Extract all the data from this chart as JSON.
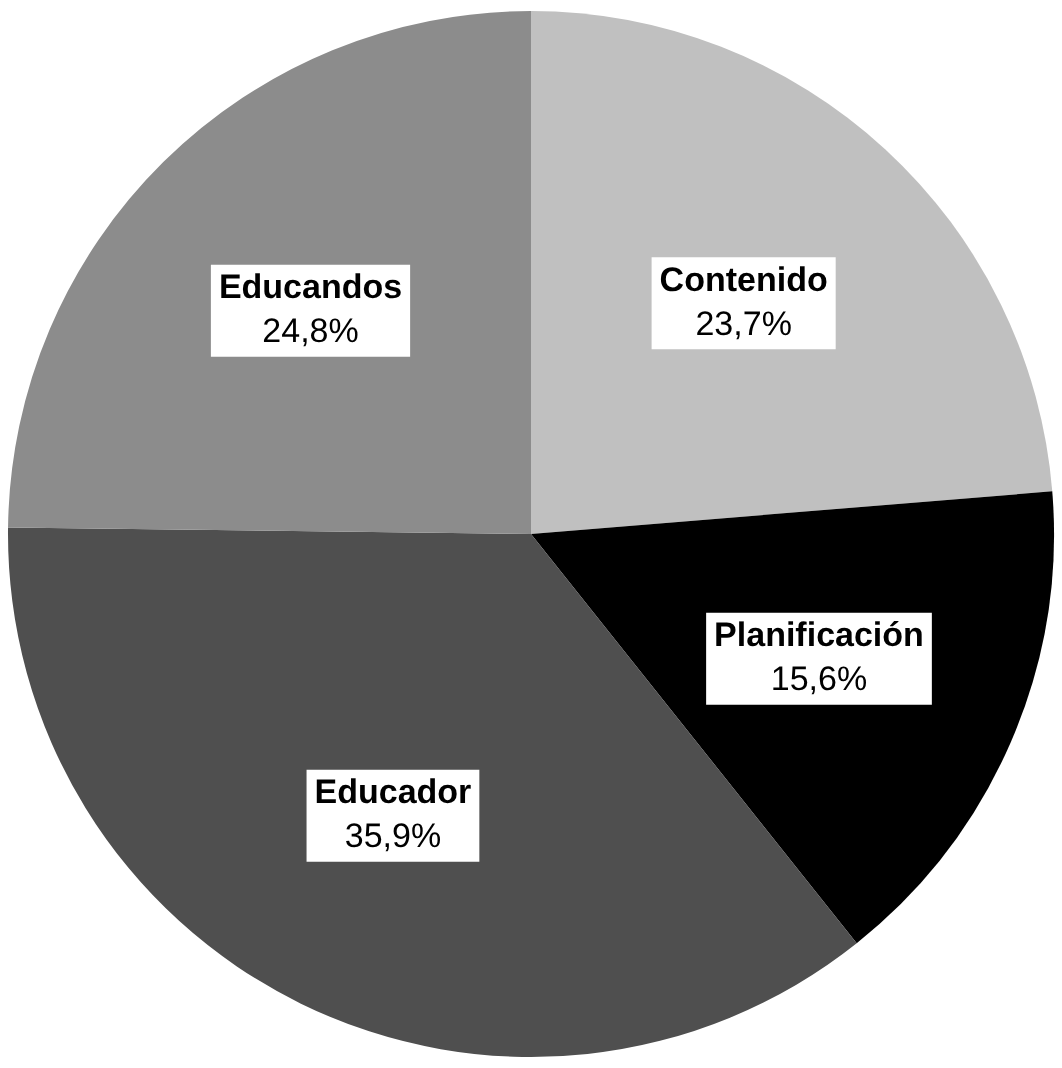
{
  "chart_data": {
    "type": "pie",
    "categories": [
      "Contenido",
      "Planificación",
      "Educador",
      "Educandos"
    ],
    "values": [
      23.7,
      15.6,
      35.9,
      24.8
    ],
    "colors": [
      "#c0c0c0",
      "#000000",
      "#4f4f4f",
      "#8c8c8c"
    ],
    "value_labels": [
      "23,7%",
      "15,6%",
      "35,9%",
      "24,8%"
    ],
    "legend": false
  }
}
